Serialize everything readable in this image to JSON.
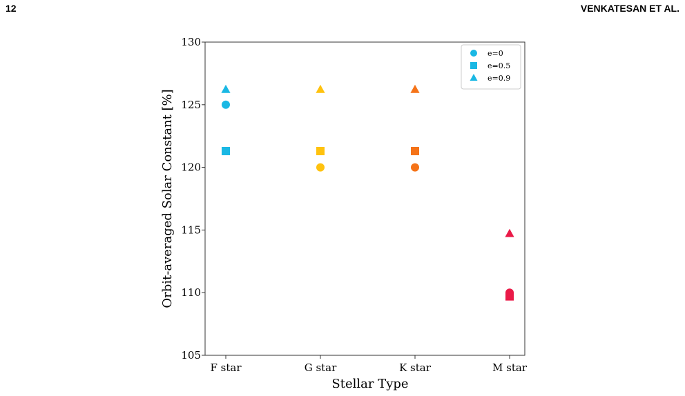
{
  "header": {
    "page_number": "12",
    "running_head": "VENKATESAN ET AL."
  },
  "chart_data": {
    "type": "scatter",
    "x_label": "Stellar Type",
    "y_label": "Orbit-averaged Solar Constant [%]",
    "categories": [
      "F star",
      "G star",
      "K star",
      "M star"
    ],
    "category_colors": [
      "#1ab8e4",
      "#ffc20e",
      "#f57318",
      "#ea1a48"
    ],
    "series": [
      {
        "name": "e=0",
        "marker": "circle",
        "color": "#1ab8e4",
        "values": [
          125,
          120,
          120,
          110
        ]
      },
      {
        "name": "e=0.5",
        "marker": "square",
        "color": "#1ab8e4",
        "values": [
          121.3,
          121.3,
          121.3,
          109.7
        ]
      },
      {
        "name": "e=0.9",
        "marker": "triangle",
        "color": "#1ab8e4",
        "values": [
          126.2,
          126.2,
          126.2,
          114.7
        ]
      }
    ],
    "ylim": [
      105,
      130
    ],
    "yticks": [
      105,
      110,
      115,
      120,
      125,
      130
    ],
    "legend": "upper right"
  }
}
